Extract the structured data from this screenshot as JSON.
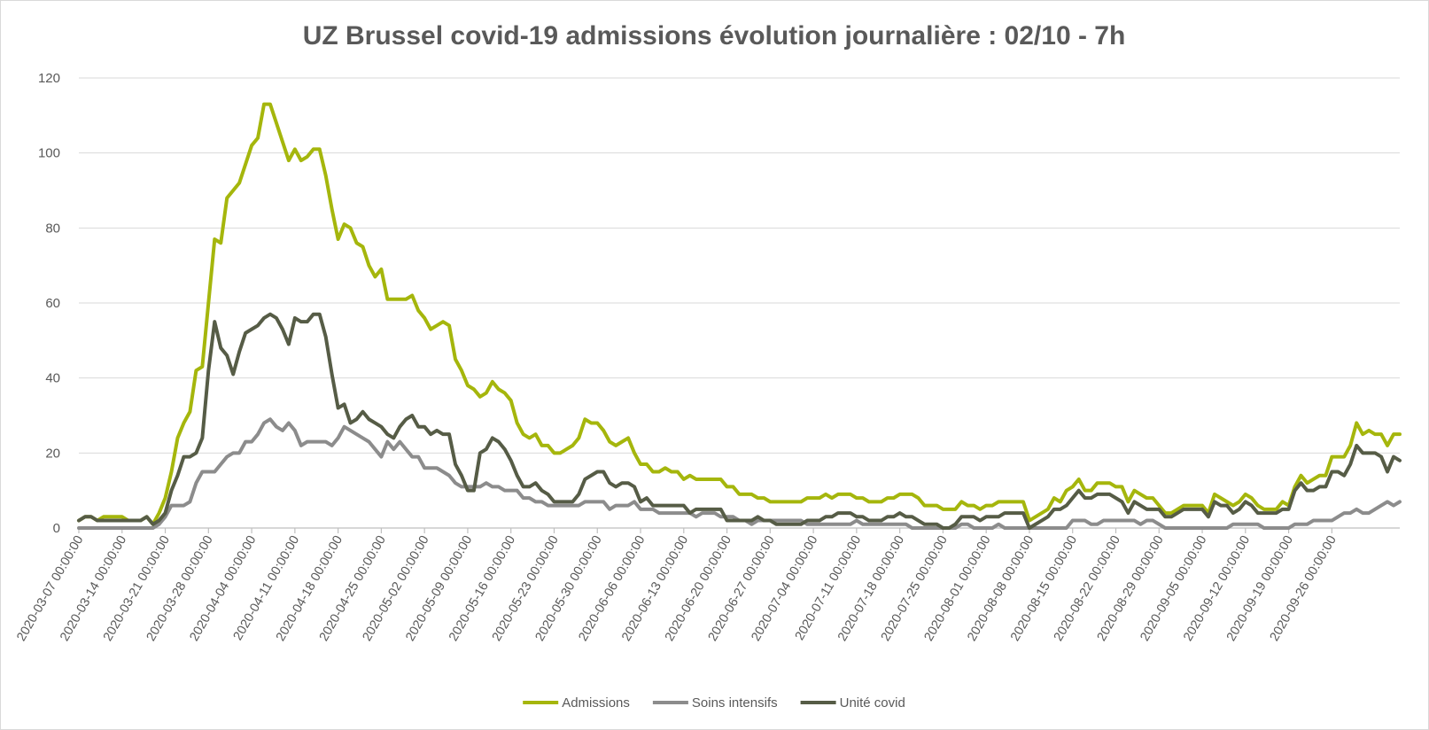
{
  "chart_data": {
    "type": "line",
    "title": "UZ Brussel covid-19 admissions évolution journalière : 02/10 - 7h",
    "xlabel": "",
    "ylabel": "",
    "ylim": [
      0,
      120
    ],
    "yticks": [
      0,
      20,
      40,
      60,
      80,
      100,
      120
    ],
    "grid": true,
    "legend_position": "bottom",
    "x_start": "2020-03-07",
    "x_tick_labels": [
      "2020-03-07 00:00:00",
      "2020-03-14 00:00:00",
      "2020-03-21 00:00:00",
      "2020-03-28 00:00:00",
      "2020-04-04 00:00:00",
      "2020-04-11 00:00:00",
      "2020-04-18 00:00:00",
      "2020-04-25 00:00:00",
      "2020-05-02 00:00:00",
      "2020-05-09 00:00:00",
      "2020-05-16 00:00:00",
      "2020-05-23 00:00:00",
      "2020-05-30 00:00:00",
      "2020-06-06 00:00:00",
      "2020-06-13 00:00:00",
      "2020-06-20 00:00:00",
      "2020-06-27 00:00:00",
      "2020-07-04 00:00:00",
      "2020-07-11 00:00:00",
      "2020-07-18 00:00:00",
      "2020-07-25 00:00:00",
      "2020-08-01 00:00:00",
      "2020-08-08 00:00:00",
      "2020-08-15 00:00:00",
      "2020-08-22 00:00:00",
      "2020-08-29 00:00:00",
      "2020-09-05 00:00:00",
      "2020-09-12 00:00:00",
      "2020-09-19 00:00:00",
      "2020-09-26 00:00:00"
    ],
    "series": [
      {
        "name": "Admissions",
        "color": "#a5b60c",
        "values": [
          2,
          3,
          3,
          2,
          3,
          3,
          3,
          3,
          2,
          2,
          2,
          3,
          1,
          4,
          8,
          15,
          24,
          28,
          31,
          42,
          43,
          60,
          77,
          76,
          88,
          90,
          92,
          97,
          102,
          104,
          113,
          113,
          108,
          103,
          98,
          101,
          98,
          99,
          101,
          101,
          94,
          85,
          77,
          81,
          80,
          76,
          75,
          70,
          67,
          69,
          61,
          61,
          61,
          61,
          62,
          58,
          56,
          53,
          54,
          55,
          54,
          45,
          42,
          38,
          37,
          35,
          36,
          39,
          37,
          36,
          34,
          28,
          25,
          24,
          25,
          22,
          22,
          20,
          20,
          21,
          22,
          24,
          29,
          28,
          28,
          26,
          23,
          22,
          23,
          24,
          20,
          17,
          17,
          15,
          15,
          16,
          15,
          15,
          13,
          14,
          13,
          13,
          13,
          13,
          13,
          11,
          11,
          9,
          9,
          9,
          8,
          8,
          7,
          7,
          7,
          7,
          7,
          7,
          8,
          8,
          8,
          9,
          8,
          9,
          9,
          9,
          8,
          8,
          7,
          7,
          7,
          8,
          8,
          9,
          9,
          9,
          8,
          6,
          6,
          6,
          5,
          5,
          5,
          7,
          6,
          6,
          5,
          6,
          6,
          7,
          7,
          7,
          7,
          7,
          2,
          3,
          4,
          5,
          8,
          7,
          10,
          11,
          13,
          10,
          10,
          12,
          12,
          12,
          11,
          11,
          7,
          10,
          9,
          8,
          8,
          6,
          4,
          4,
          5,
          6,
          6,
          6,
          6,
          4,
          9,
          8,
          7,
          6,
          7,
          9,
          8,
          6,
          5,
          5,
          5,
          7,
          6,
          11,
          14,
          12,
          13,
          14,
          14,
          19,
          19,
          19,
          22,
          28,
          25,
          26,
          25,
          25,
          22,
          25,
          25
        ]
      },
      {
        "name": "Soins intensifs",
        "color": "#8c8c8c",
        "values": [
          0,
          0,
          0,
          0,
          0,
          0,
          0,
          0,
          0,
          0,
          0,
          0,
          0,
          1,
          3,
          6,
          6,
          6,
          7,
          12,
          15,
          15,
          15,
          17,
          19,
          20,
          20,
          23,
          23,
          25,
          28,
          29,
          27,
          26,
          28,
          26,
          22,
          23,
          23,
          23,
          23,
          22,
          24,
          27,
          26,
          25,
          24,
          23,
          21,
          19,
          23,
          21,
          23,
          21,
          19,
          19,
          16,
          16,
          16,
          15,
          14,
          12,
          11,
          11,
          11,
          11,
          12,
          11,
          11,
          10,
          10,
          10,
          8,
          8,
          7,
          7,
          6,
          6,
          6,
          6,
          6,
          6,
          7,
          7,
          7,
          7,
          5,
          6,
          6,
          6,
          7,
          5,
          5,
          5,
          4,
          4,
          4,
          4,
          4,
          4,
          3,
          4,
          4,
          4,
          3,
          3,
          3,
          2,
          2,
          1,
          2,
          2,
          2,
          2,
          2,
          2,
          2,
          2,
          1,
          1,
          1,
          1,
          1,
          1,
          1,
          1,
          2,
          1,
          1,
          1,
          1,
          1,
          1,
          1,
          1,
          0,
          0,
          0,
          0,
          0,
          0,
          0,
          0,
          1,
          1,
          0,
          0,
          0,
          0,
          1,
          0,
          0,
          0,
          0,
          0,
          0,
          0,
          0,
          0,
          0,
          0,
          2,
          2,
          2,
          1,
          1,
          2,
          2,
          2,
          2,
          2,
          2,
          1,
          2,
          2,
          1,
          0,
          0,
          0,
          0,
          0,
          0,
          0,
          0,
          0,
          0,
          0,
          1,
          1,
          1,
          1,
          1,
          0,
          0,
          0,
          0,
          0,
          1,
          1,
          1,
          2,
          2,
          2,
          2,
          3,
          4,
          4,
          5,
          4,
          4,
          5,
          6,
          7,
          6,
          7
        ]
      },
      {
        "name": "Unité covid",
        "color": "#565c46",
        "values": [
          2,
          3,
          3,
          2,
          2,
          2,
          2,
          2,
          2,
          2,
          2,
          3,
          1,
          2,
          4,
          10,
          14,
          19,
          19,
          20,
          24,
          42,
          55,
          48,
          46,
          41,
          47,
          52,
          53,
          54,
          56,
          57,
          56,
          53,
          49,
          56,
          55,
          55,
          57,
          57,
          51,
          41,
          32,
          33,
          28,
          29,
          31,
          29,
          28,
          27,
          25,
          24,
          27,
          29,
          30,
          27,
          27,
          25,
          26,
          25,
          25,
          17,
          14,
          10,
          10,
          20,
          21,
          24,
          23,
          21,
          18,
          14,
          11,
          11,
          12,
          10,
          9,
          7,
          7,
          7,
          7,
          9,
          13,
          14,
          15,
          15,
          12,
          11,
          12,
          12,
          11,
          7,
          8,
          6,
          6,
          6,
          6,
          6,
          6,
          4,
          5,
          5,
          5,
          5,
          5,
          2,
          2,
          2,
          2,
          2,
          3,
          2,
          2,
          1,
          1,
          1,
          1,
          1,
          2,
          2,
          2,
          3,
          3,
          4,
          4,
          4,
          3,
          3,
          2,
          2,
          2,
          3,
          3,
          4,
          3,
          3,
          2,
          1,
          1,
          1,
          0,
          0,
          1,
          3,
          3,
          3,
          2,
          3,
          3,
          3,
          4,
          4,
          4,
          4,
          0,
          1,
          2,
          3,
          5,
          5,
          6,
          8,
          10,
          8,
          8,
          9,
          9,
          9,
          8,
          7,
          4,
          7,
          6,
          5,
          5,
          5,
          3,
          3,
          4,
          5,
          5,
          5,
          5,
          3,
          7,
          6,
          6,
          4,
          5,
          7,
          6,
          4,
          4,
          4,
          4,
          5,
          5,
          10,
          12,
          10,
          10,
          11,
          11,
          15,
          15,
          14,
          17,
          22,
          20,
          20,
          20,
          19,
          15,
          19,
          18
        ]
      }
    ]
  }
}
